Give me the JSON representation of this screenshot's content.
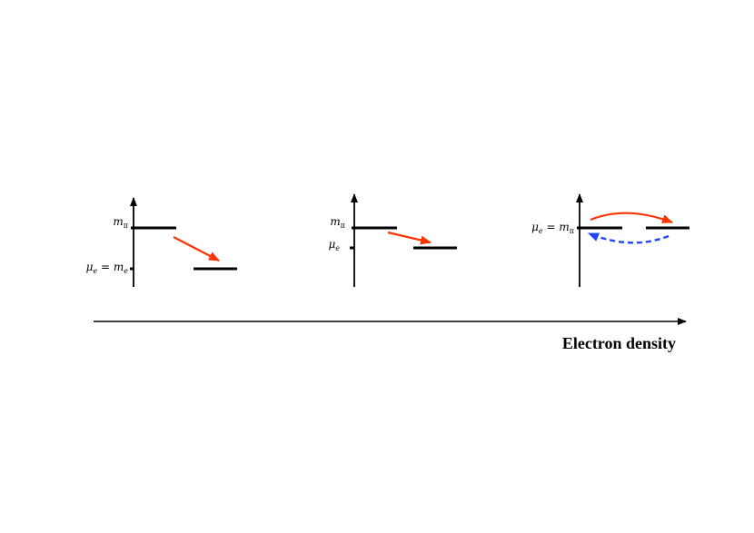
{
  "colors": {
    "axis": "#000000",
    "level": "#000000",
    "transition_arrow": "#ff3300",
    "reverse_arrow": "#2244ff"
  },
  "x_axis": {
    "label": "Electron density"
  },
  "panels": [
    {
      "labels": {
        "upper_base": "m",
        "upper_sub": "π",
        "lower_lhs": "μ",
        "lower_lhs_sub": "e",
        "lower_eq": " = ",
        "lower_rhs": "m",
        "lower_rhs_sub": "e"
      }
    },
    {
      "labels": {
        "upper_base": "m",
        "upper_sub": "π",
        "lower_base": "μ",
        "lower_sub": "e"
      }
    },
    {
      "labels": {
        "lhs": "μ",
        "lhs_sub": "e",
        "eq": " = ",
        "rhs": "m",
        "rhs_sub": "π"
      }
    }
  ]
}
